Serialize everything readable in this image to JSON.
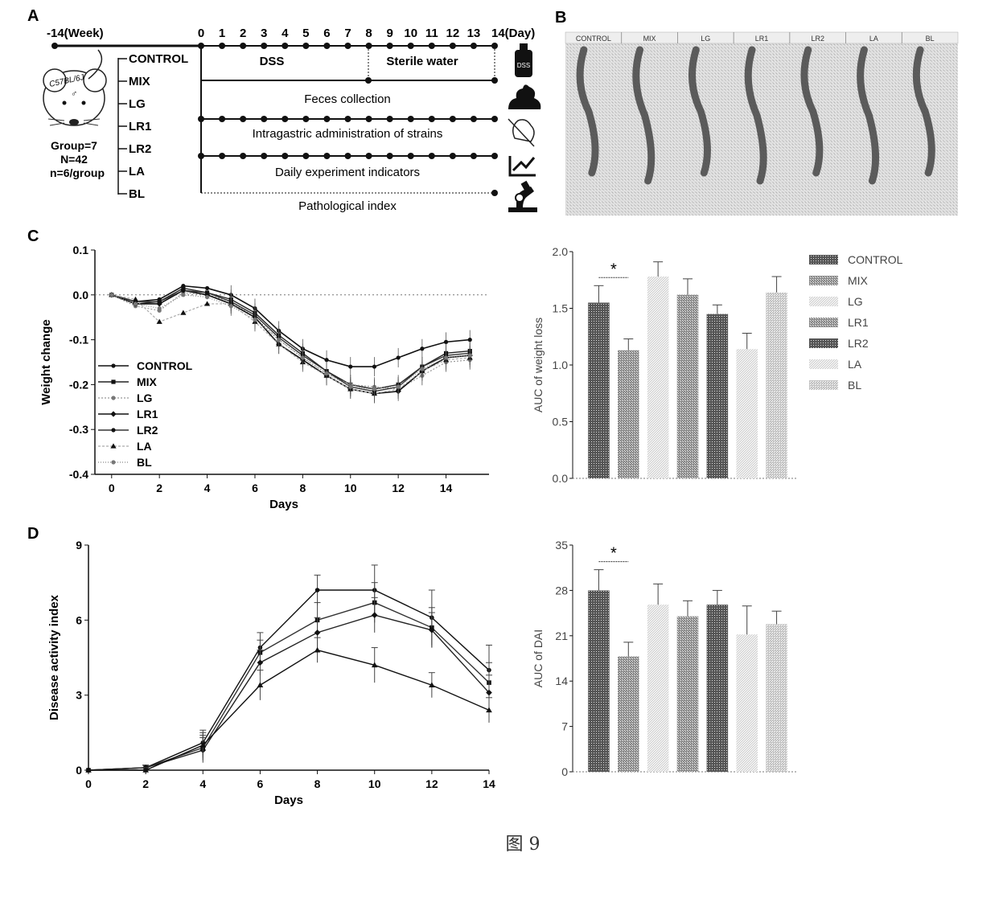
{
  "figure_caption": "图 9",
  "panel_a": {
    "letter": "A",
    "week_label": "-14(Week)",
    "day_ticks": [
      "0",
      "1",
      "2",
      "3",
      "4",
      "5",
      "6",
      "7",
      "8",
      "9",
      "10",
      "11",
      "12",
      "13",
      "14(Day)"
    ],
    "mouse_label": "C57BL/6J",
    "mouse_sex": "♂",
    "group_info": [
      "Group=7",
      "N=42",
      "n=6/group"
    ],
    "groups": [
      "CONTROL",
      "MIX",
      "LG",
      "LR1",
      "LR2",
      "LA",
      "BL"
    ],
    "dss_label": "DSS",
    "sterile_label": "Sterile water",
    "rows": [
      "Feces collection",
      "Intragastric administration of strains",
      "Daily  experiment  indicators",
      "Pathological index"
    ],
    "icons": [
      "dss-bottle-icon",
      "feces-icon",
      "gavage-icon",
      "line-chart-icon",
      "microscope-icon"
    ],
    "bottle_text": "DSS"
  },
  "panel_b": {
    "letter": "B",
    "lanes": [
      "CONTROL",
      "MIX",
      "LG",
      "LR1",
      "LR2",
      "LA",
      "BL"
    ]
  },
  "panel_c": {
    "letter": "C"
  },
  "panel_d": {
    "letter": "D"
  },
  "chart_data": [
    {
      "type": "line",
      "panel": "C",
      "xlabel": "Days",
      "ylabel": "Weight change",
      "xlim": [
        -0.7,
        15.8
      ],
      "ylim": [
        -0.4,
        0.1
      ],
      "xticks": [
        "0",
        "2",
        "4",
        "6",
        "8",
        "10",
        "12",
        "14"
      ],
      "yticks": [
        "0.1",
        "0.0",
        "-0.1",
        "-0.2",
        "-0.3",
        "-0.4"
      ],
      "reference_line": 0,
      "legend_position": "bottom-left",
      "x": [
        0,
        1,
        2,
        3,
        4,
        5,
        6,
        7,
        8,
        9,
        10,
        11,
        12,
        13,
        14,
        15
      ],
      "series": [
        {
          "name": "CONTROL",
          "values": [
            0,
            -0.015,
            -0.01,
            0.02,
            0.015,
            0.0,
            -0.03,
            -0.08,
            -0.12,
            -0.145,
            -0.16,
            -0.16,
            -0.14,
            -0.12,
            -0.105,
            -0.1
          ]
        },
        {
          "name": "MIX",
          "values": [
            0,
            -0.02,
            -0.015,
            0.015,
            0.005,
            -0.01,
            -0.04,
            -0.09,
            -0.13,
            -0.17,
            -0.2,
            -0.21,
            -0.2,
            -0.16,
            -0.13,
            -0.125
          ]
        },
        {
          "name": "LG",
          "values": [
            0,
            -0.025,
            -0.035,
            0.005,
            0.0,
            -0.015,
            -0.05,
            -0.1,
            -0.14,
            -0.175,
            -0.2,
            -0.205,
            -0.21,
            -0.18,
            -0.15,
            -0.145
          ]
        },
        {
          "name": "LR1",
          "values": [
            0,
            -0.02,
            -0.02,
            0.01,
            0.0,
            -0.02,
            -0.05,
            -0.11,
            -0.145,
            -0.18,
            -0.21,
            -0.22,
            -0.215,
            -0.17,
            -0.14,
            -0.135
          ]
        },
        {
          "name": "LR2",
          "values": [
            0,
            -0.015,
            -0.015,
            0.01,
            0.005,
            -0.015,
            -0.045,
            -0.095,
            -0.135,
            -0.17,
            -0.205,
            -0.215,
            -0.205,
            -0.16,
            -0.135,
            -0.13
          ]
        },
        {
          "name": "LA",
          "values": [
            0,
            -0.01,
            -0.06,
            -0.04,
            -0.02,
            -0.02,
            -0.06,
            -0.11,
            -0.15,
            -0.18,
            -0.21,
            -0.22,
            -0.21,
            -0.17,
            -0.145,
            -0.14
          ]
        },
        {
          "name": "BL",
          "values": [
            0,
            -0.02,
            -0.03,
            0.0,
            -0.005,
            -0.025,
            -0.055,
            -0.1,
            -0.14,
            -0.175,
            -0.205,
            -0.21,
            -0.205,
            -0.165,
            -0.14,
            -0.135
          ]
        }
      ]
    },
    {
      "type": "bar",
      "panel": "C",
      "xlabel": "",
      "ylabel": "AUC of weight loss",
      "ylim": [
        0,
        2.0
      ],
      "yticks": [
        "2.0",
        "1.5",
        "1.0",
        "0.5",
        "0.0"
      ],
      "categories": [
        "CONTROL",
        "MIX",
        "LG",
        "LR1",
        "LR2",
        "LA",
        "BL"
      ],
      "values": [
        1.55,
        1.13,
        1.78,
        1.62,
        1.45,
        1.14,
        1.64
      ],
      "errors": [
        0.15,
        0.1,
        0.13,
        0.14,
        0.08,
        0.14,
        0.14
      ],
      "significance": {
        "between": [
          "CONTROL",
          "MIX"
        ],
        "label": "*"
      },
      "legend_position": "right"
    },
    {
      "type": "line",
      "panel": "D",
      "xlabel": "Days",
      "ylabel": "Disease activity index",
      "xlim": [
        0,
        14
      ],
      "ylim": [
        0,
        9
      ],
      "xticks": [
        "0",
        "2",
        "4",
        "6",
        "8",
        "10",
        "12",
        "14"
      ],
      "yticks": [
        "9",
        "6",
        "3",
        "0"
      ],
      "x": [
        0,
        2,
        4,
        6,
        8,
        10,
        12,
        14
      ],
      "series": [
        {
          "values": [
            0,
            0.1,
            1.1,
            4.9,
            7.2,
            7.2,
            6.1,
            4.0
          ],
          "errors": [
            0,
            0.1,
            0.5,
            0.6,
            0.6,
            1.0,
            1.1,
            1.0
          ]
        },
        {
          "values": [
            0,
            0.1,
            0.9,
            4.7,
            6.0,
            6.7,
            5.7,
            3.5
          ],
          "errors": [
            0,
            0.1,
            0.5,
            0.5,
            0.7,
            0.8,
            0.8,
            0.8
          ]
        },
        {
          "values": [
            0,
            0.1,
            0.8,
            4.3,
            5.5,
            6.2,
            5.6,
            3.1
          ],
          "errors": [
            0,
            0.1,
            0.5,
            0.5,
            0.6,
            0.7,
            0.7,
            0.7
          ]
        },
        {
          "values": [
            0,
            0.0,
            1.0,
            3.4,
            4.8,
            4.2,
            3.4,
            2.4
          ],
          "errors": [
            0,
            0.1,
            0.5,
            0.6,
            0.5,
            0.7,
            0.5,
            0.5
          ]
        }
      ]
    },
    {
      "type": "bar",
      "panel": "D",
      "xlabel": "",
      "ylabel": "AUC of DAI",
      "ylim": [
        0,
        35
      ],
      "yticks": [
        "35",
        "28",
        "21",
        "14",
        "7",
        "0"
      ],
      "categories": [
        "CONTROL",
        "MIX",
        "LG",
        "LR1",
        "LR2",
        "LA",
        "BL"
      ],
      "values": [
        28.0,
        17.8,
        25.8,
        24.0,
        25.8,
        21.2,
        22.8
      ],
      "errors": [
        3.2,
        2.2,
        3.2,
        2.4,
        2.2,
        4.4,
        2.0
      ],
      "significance": {
        "between": [
          "CONTROL",
          "MIX"
        ],
        "label": "*"
      }
    }
  ]
}
